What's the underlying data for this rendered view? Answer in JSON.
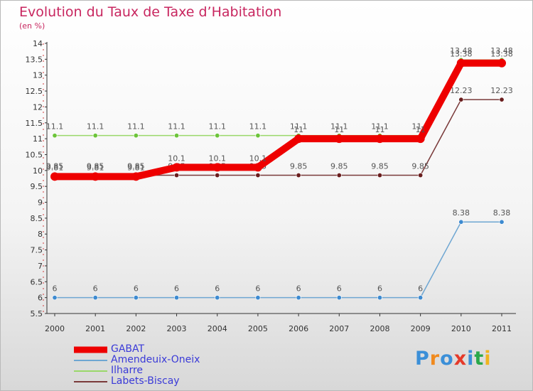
{
  "chart_data": {
    "type": "line",
    "title": "Evolution du Taux de Taxe d’Habitation",
    "subtitle": "(en %)",
    "xlabel": "",
    "ylabel": "",
    "x": [
      "2000",
      "2001",
      "2002",
      "2003",
      "2004",
      "2005",
      "2006",
      "2007",
      "2008",
      "2009",
      "2010",
      "2011"
    ],
    "ylim": [
      5.5,
      14
    ],
    "yticks": [
      "5.5",
      "6",
      "6.5",
      "7",
      "7.5",
      "8",
      "8.5",
      "9",
      "9.5",
      "10",
      "10.5",
      "11",
      "11.5",
      "12",
      "12.5",
      "13",
      "13.5",
      "14"
    ],
    "grid": false,
    "legend_position": "bottom-left",
    "series": [
      {
        "name": "Amendeuix-Oneix",
        "color": "#6ea6d2",
        "point_color": "#3d8ad0",
        "values": [
          6,
          6,
          6,
          6,
          6,
          6,
          6,
          6,
          6,
          6,
          8.38,
          8.38
        ],
        "labels": [
          "6",
          "6",
          "6",
          "6",
          "6",
          "6",
          "6",
          "6",
          "6",
          "6",
          "8.38",
          "8.38"
        ]
      },
      {
        "name": "Labets-Biscay",
        "color": "#7a3a3a",
        "point_color": "#6a1e1e",
        "values": [
          9.85,
          9.85,
          9.85,
          9.85,
          9.85,
          9.85,
          9.85,
          9.85,
          9.85,
          9.85,
          12.23,
          12.23
        ],
        "labels": [
          "9.85",
          "9.85",
          "9.85",
          "9.85",
          "9.85",
          "9.85",
          "9.85",
          "9.85",
          "9.85",
          "9.85",
          "12.23",
          "12.23"
        ]
      },
      {
        "name": "Ilharre",
        "color": "#9ad86a",
        "point_color": "#6cc43a",
        "values": [
          11.1,
          11.1,
          11.1,
          11.1,
          11.1,
          11.1,
          11.1,
          11.1,
          11.1,
          11.1,
          13.48,
          13.48
        ],
        "labels": [
          "11.1",
          "11.1",
          "11.1",
          "11.1",
          "11.1",
          "11.1",
          "11.1",
          "11.1",
          "11.1",
          "11.1",
          "13.48",
          "13.48"
        ]
      },
      {
        "name": "GABAT",
        "color": "#ee0000",
        "point_color": "#ee0000",
        "values": [
          9.81,
          9.81,
          9.81,
          10.1,
          10.1,
          10.1,
          11,
          11,
          11,
          11,
          13.38,
          13.38
        ],
        "labels": [
          "9.81",
          "9.81",
          "9.81",
          "10.1",
          "10.1",
          "10.1",
          "11",
          "11",
          "11",
          "11",
          "13.38",
          "13.38"
        ]
      }
    ],
    "legend_order": [
      "GABAT",
      "Amendeuix-Oneix",
      "Ilharre",
      "Labets-Biscay"
    ]
  },
  "logo": {
    "letters": [
      "P",
      "r",
      "o",
      "x",
      "i",
      "t",
      "i"
    ],
    "colors": [
      "#3b8fd8",
      "#f08a1e",
      "#3b8fd8",
      "#e53a2a",
      "#3b8fd8",
      "#2aa84a",
      "#f0b41e"
    ]
  }
}
